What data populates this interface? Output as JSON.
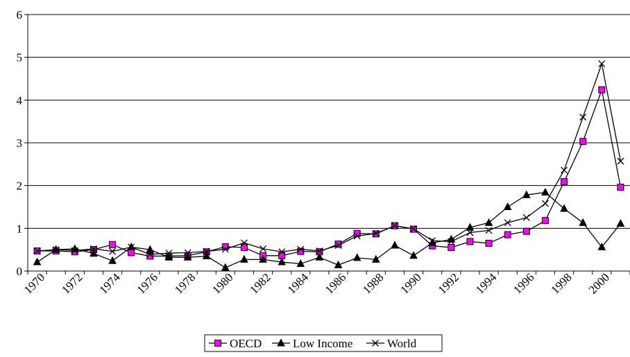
{
  "chart_data": {
    "type": "line",
    "title": "",
    "xlabel": "",
    "ylabel": "",
    "ylim": [
      0,
      6
    ],
    "yticks": [
      "0",
      "1",
      "2",
      "3",
      "4",
      "5",
      "6"
    ],
    "xtick_labels": [
      "1970",
      "1972",
      "1974",
      "1976",
      "1978",
      "1980",
      "1982",
      "1984",
      "1986",
      "1988",
      "1990",
      "1992",
      "1994",
      "1996",
      "1998",
      "2000"
    ],
    "x": [
      1970,
      1971,
      1972,
      1973,
      1974,
      1975,
      1976,
      1977,
      1978,
      1979,
      1980,
      1981,
      1982,
      1983,
      1984,
      1985,
      1986,
      1987,
      1988,
      1989,
      1990,
      1991,
      1992,
      1993,
      1994,
      1995,
      1996,
      1997,
      1998,
      1999,
      2000,
      2001
    ],
    "grid": "horizontal",
    "legend_position": "bottom",
    "series": [
      {
        "name": "OECD",
        "marker": "square",
        "color": "#ff00ff",
        "values": [
          0.47,
          0.47,
          0.45,
          0.5,
          0.62,
          0.43,
          0.35,
          0.35,
          0.36,
          0.45,
          0.57,
          0.55,
          0.36,
          0.36,
          0.46,
          0.45,
          0.63,
          0.88,
          0.87,
          1.06,
          0.98,
          0.59,
          0.55,
          0.69,
          0.65,
          0.85,
          0.93,
          1.18,
          2.09,
          3.03,
          4.24,
          1.96
        ]
      },
      {
        "name": "Low Income",
        "marker": "triangle",
        "color": "#000000",
        "values": [
          0.21,
          0.5,
          0.52,
          0.41,
          0.24,
          0.56,
          0.5,
          0.32,
          0.32,
          0.35,
          0.08,
          0.27,
          0.27,
          0.21,
          0.17,
          0.32,
          0.14,
          0.31,
          0.27,
          0.6,
          0.36,
          0.66,
          0.74,
          1.02,
          1.13,
          1.5,
          1.78,
          1.84,
          1.46,
          1.13,
          0.56,
          1.11
        ]
      },
      {
        "name": "World",
        "marker": "x",
        "color": "#000000",
        "values": [
          0.47,
          0.5,
          0.48,
          0.52,
          0.46,
          0.56,
          0.39,
          0.42,
          0.43,
          0.46,
          0.51,
          0.66,
          0.52,
          0.45,
          0.51,
          0.47,
          0.6,
          0.82,
          0.88,
          1.06,
          0.99,
          0.71,
          0.69,
          0.9,
          0.95,
          1.13,
          1.25,
          1.58,
          2.36,
          3.6,
          4.85,
          2.57
        ]
      }
    ]
  }
}
